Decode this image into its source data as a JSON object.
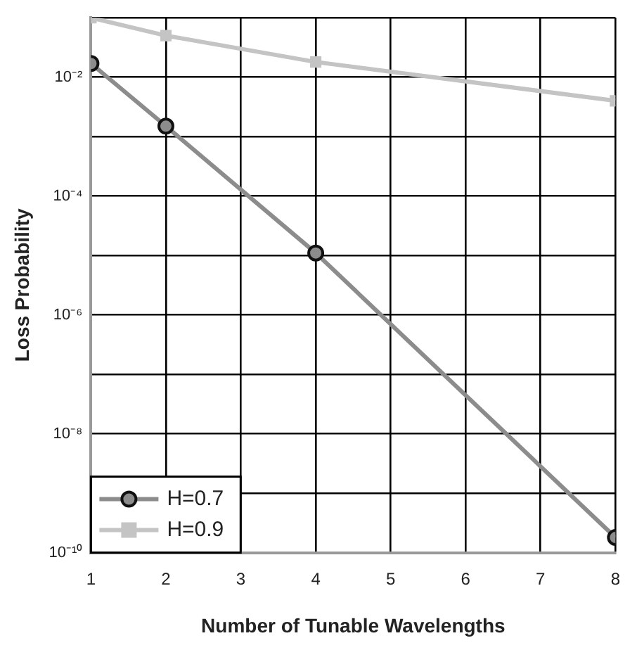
{
  "chart_data": {
    "type": "line",
    "xlabel": "Number of Tunable Wavelengths",
    "ylabel": "Loss Probability",
    "x": [
      1,
      2,
      4,
      8
    ],
    "series": [
      {
        "name": "H=0.7",
        "color": "#8c8c8c",
        "marker": "circle",
        "values": [
          0.017,
          0.0015,
          1.1e-05,
          1.8e-10
        ]
      },
      {
        "name": "H=0.9",
        "color": "#c4c4c4",
        "marker": "square",
        "values": [
          0.1,
          0.05,
          0.018,
          0.004
        ]
      }
    ],
    "xlim": [
      1,
      8
    ],
    "xticks": [
      1,
      2,
      3,
      4,
      5,
      6,
      7,
      8
    ],
    "ylim": [
      1e-10,
      0.1
    ],
    "log": "y",
    "yticks": [
      {
        "value": 1e-10,
        "label": "10⁻¹⁰"
      },
      {
        "value": 1e-09,
        "label": null
      },
      {
        "value": 1e-08,
        "label": "10⁻⁸"
      },
      {
        "value": 1e-07,
        "label": null
      },
      {
        "value": 1e-06,
        "label": "10⁻⁶"
      },
      {
        "value": 1e-05,
        "label": null
      },
      {
        "value": 0.0001,
        "label": "10⁻⁴"
      },
      {
        "value": 0.001,
        "label": null
      },
      {
        "value": 0.01,
        "label": "10⁻²"
      },
      {
        "value": 0.1,
        "label": null
      }
    ],
    "grid": true,
    "legend": "bottom left",
    "line_style": "solid"
  }
}
